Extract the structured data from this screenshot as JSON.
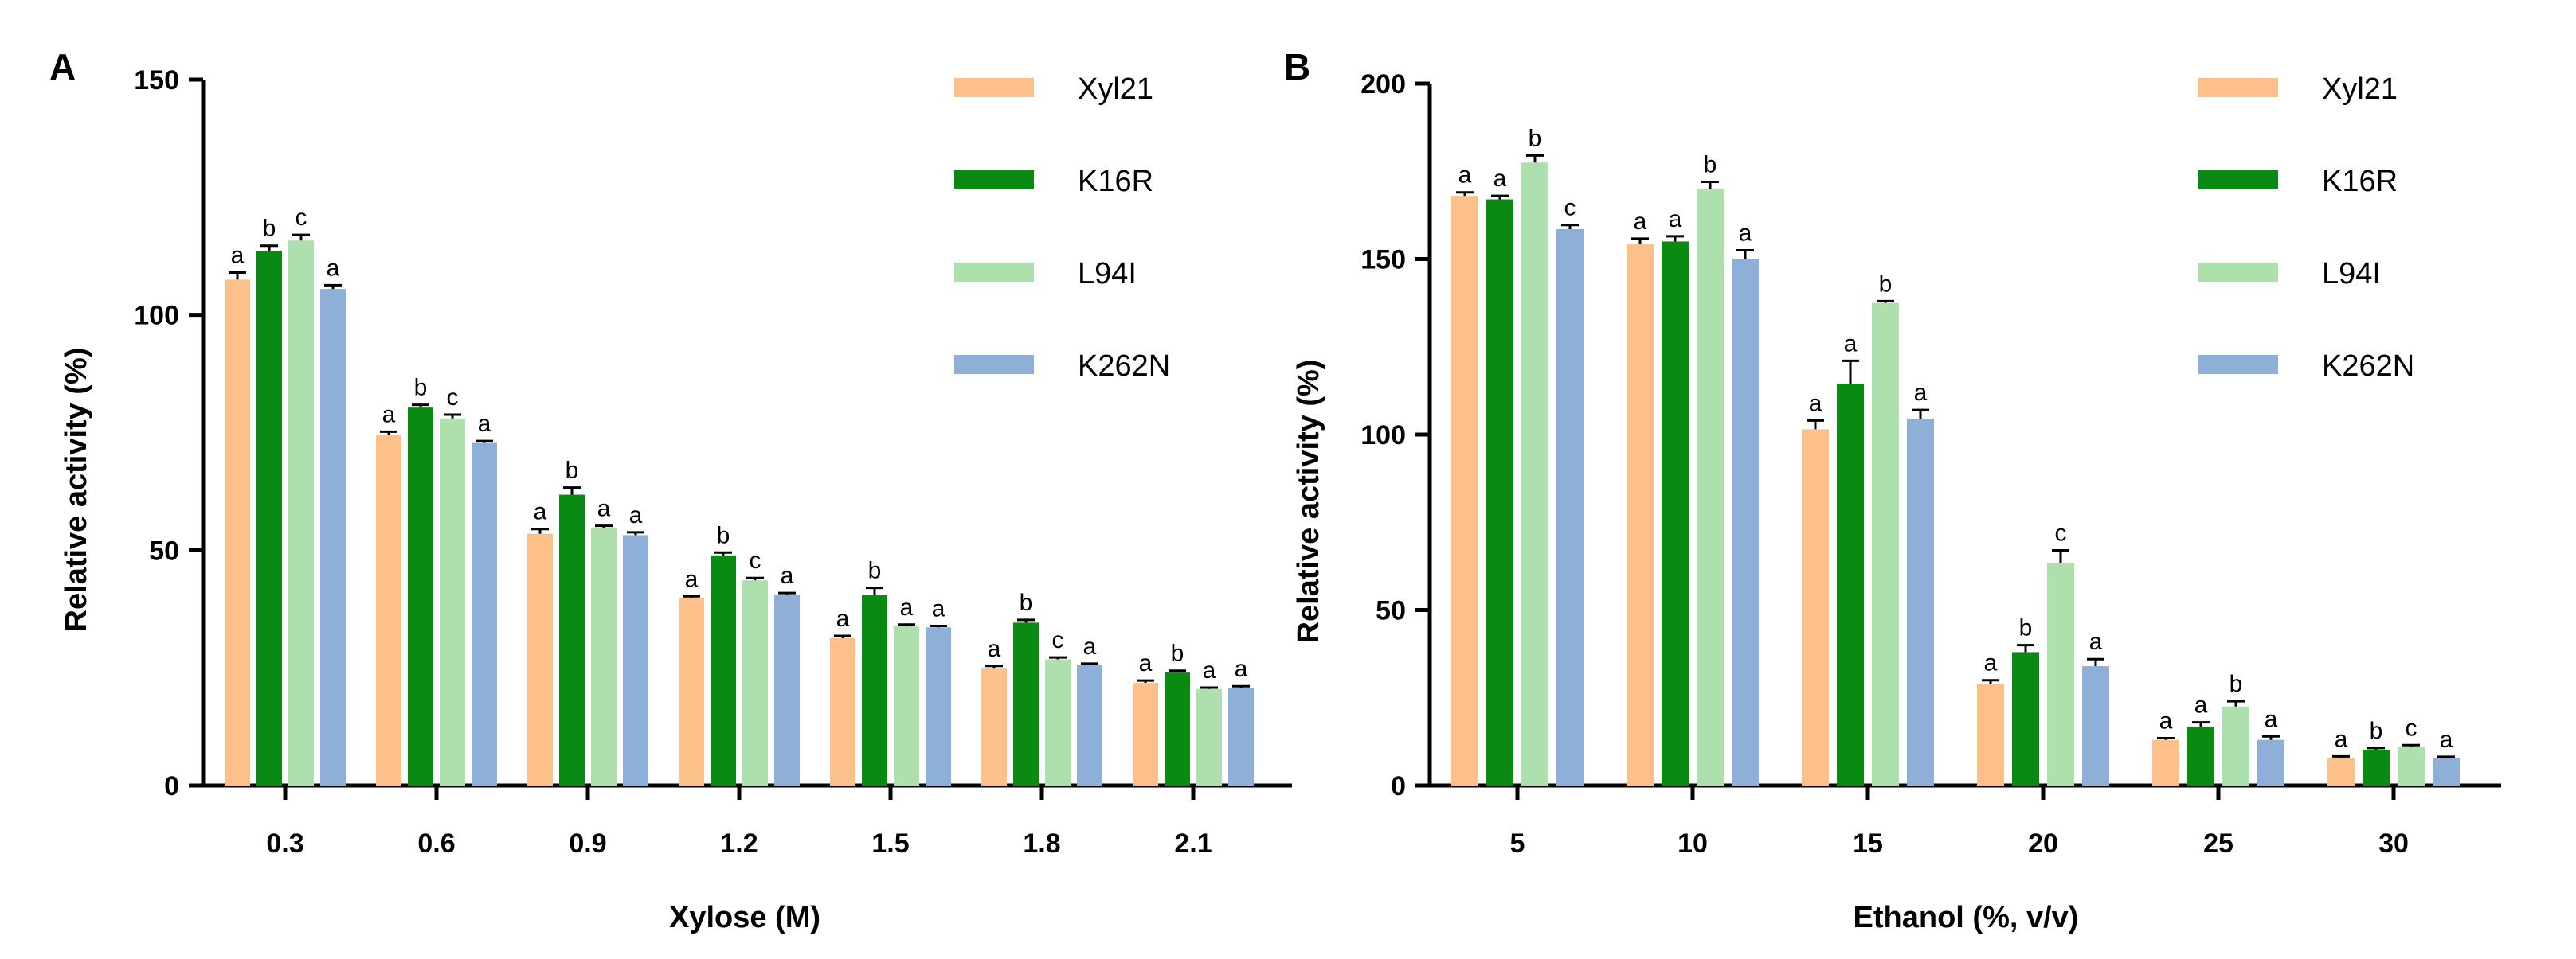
{
  "colors": {
    "Xyl21": "#FDC08A",
    "K16R": "#0A8A12",
    "L94I": "#ADE0AD",
    "K262N": "#8EAFD8"
  },
  "chart_data": [
    {
      "panel": "A",
      "type": "bar",
      "xlabel": "Xylose (M)",
      "ylabel": "Relative activity (%)",
      "ylim": [
        0,
        150
      ],
      "yticks": [
        0,
        50,
        100,
        150
      ],
      "categories": [
        "0.3",
        "0.6",
        "0.9",
        "1.2",
        "1.5",
        "1.8",
        "2.1"
      ],
      "legend_position": "top-right",
      "series": [
        {
          "name": "Xyl21",
          "values": [
            107.5,
            74.5,
            53.5,
            39.8,
            31.3,
            25.0,
            21.8
          ],
          "errors": [
            1.5,
            0.7,
            1.0,
            0.4,
            0.5,
            0.4,
            0.5
          ],
          "labels": [
            "a",
            "a",
            "a",
            "a",
            "a",
            "a",
            "a"
          ]
        },
        {
          "name": "K16R",
          "values": [
            113.5,
            80.3,
            61.8,
            48.9,
            40.5,
            34.6,
            24.0
          ],
          "errors": [
            1.2,
            0.6,
            1.5,
            0.6,
            1.5,
            0.6,
            0.4
          ],
          "labels": [
            "b",
            "b",
            "b",
            "b",
            "b",
            "b",
            "b"
          ]
        },
        {
          "name": "L94I",
          "values": [
            115.8,
            78.0,
            54.8,
            43.6,
            33.8,
            26.8,
            20.5
          ],
          "errors": [
            1.2,
            0.8,
            0.4,
            0.5,
            0.4,
            0.4,
            0.3
          ],
          "labels": [
            "c",
            "c",
            "a",
            "c",
            "a",
            "c",
            "a"
          ]
        },
        {
          "name": "K262N",
          "values": [
            105.5,
            72.8,
            53.2,
            40.6,
            33.6,
            25.6,
            20.8
          ],
          "errors": [
            0.8,
            0.4,
            0.6,
            0.3,
            0.3,
            0.3,
            0.3
          ],
          "labels": [
            "a",
            "a",
            "a",
            "a",
            "a",
            "a",
            "a"
          ]
        }
      ]
    },
    {
      "panel": "B",
      "type": "bar",
      "xlabel": "Ethanol (%, v/v)",
      "ylabel": "Relative activity (%)",
      "ylim": [
        0,
        200
      ],
      "yticks": [
        0,
        50,
        100,
        150,
        200
      ],
      "categories": [
        "5",
        "10",
        "15",
        "20",
        "25",
        "30"
      ],
      "legend_position": "top-right",
      "series": [
        {
          "name": "Xyl21",
          "values": [
            168.0,
            154.3,
            101.5,
            29.0,
            13.0,
            7.8
          ],
          "errors": [
            1.0,
            1.5,
            2.5,
            1.0,
            0.5,
            0.5
          ],
          "labels": [
            "a",
            "a",
            "a",
            "a",
            "a",
            "a"
          ]
        },
        {
          "name": "K16R",
          "values": [
            167.0,
            155.0,
            114.5,
            38.0,
            16.8,
            10.2
          ],
          "errors": [
            1.0,
            1.5,
            6.5,
            2.0,
            1.2,
            0.5
          ],
          "labels": [
            "a",
            "a",
            "a",
            "b",
            "a",
            "b"
          ]
        },
        {
          "name": "L94I",
          "values": [
            177.5,
            170.0,
            137.5,
            63.5,
            22.5,
            11.0
          ],
          "errors": [
            2.0,
            2.0,
            0.5,
            3.5,
            1.5,
            0.5
          ],
          "labels": [
            "b",
            "b",
            "b",
            "c",
            "b",
            "c"
          ]
        },
        {
          "name": "K262N",
          "values": [
            158.5,
            150.0,
            104.5,
            34.0,
            13.0,
            7.8
          ],
          "errors": [
            1.2,
            2.5,
            2.5,
            2.0,
            1.0,
            0.4
          ],
          "labels": [
            "c",
            "a",
            "a",
            "a",
            "a",
            "a"
          ]
        }
      ]
    }
  ]
}
